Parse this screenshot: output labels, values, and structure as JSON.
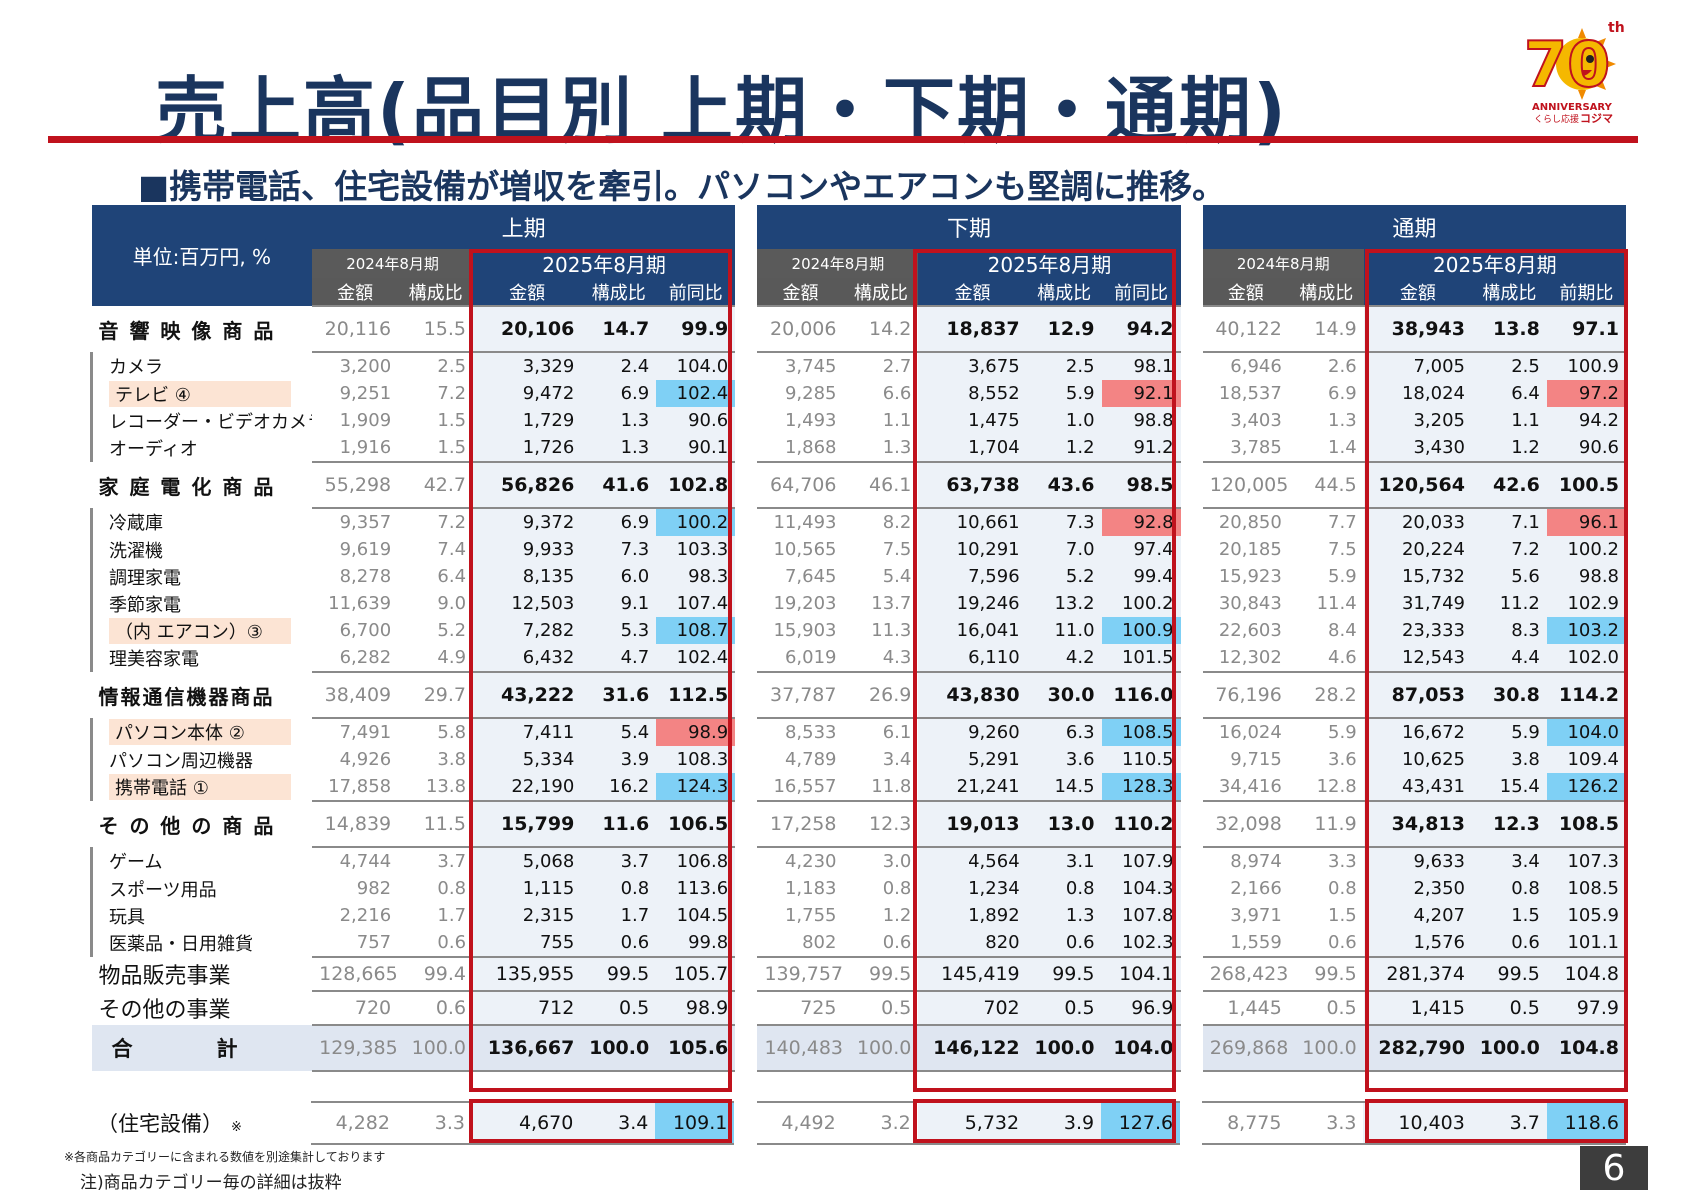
{
  "title": "売上高(品目別 上期・下期・通期)",
  "subtitle": "■携帯電話、住宅設備が増収を牽引。パソコンやエアコンも堅調に推移。",
  "logo": {
    "main": "70",
    "th": "th",
    "anniversary": "ANNIVERSARY",
    "brand_small": "くらし応援",
    "brand": "コジマ"
  },
  "unit_label": "単位:百万円, %",
  "periods": [
    "上期",
    "下期",
    "通期"
  ],
  "prev_year": "2024年8月期",
  "curr_year": "2025年8月期",
  "col_headers": {
    "amount": "金額",
    "ratio": "構成比",
    "yoy_h": "前同比",
    "yoy_full": "前期比"
  },
  "rows": [
    {
      "label": "音 響 映 像 商 品",
      "type": "cat",
      "v": [
        "20,116",
        "15.5",
        "20,106",
        "14.7",
        "99.9",
        "20,006",
        "14.2",
        "18,837",
        "12.9",
        "94.2",
        "40,122",
        "14.9",
        "38,943",
        "13.8",
        "97.1"
      ]
    },
    {
      "label": "カメラ",
      "type": "sub",
      "v": [
        "3,200",
        "2.5",
        "3,329",
        "2.4",
        "104.0",
        "3,745",
        "2.7",
        "3,675",
        "2.5",
        "98.1",
        "6,946",
        "2.6",
        "7,005",
        "2.5",
        "100.9"
      ]
    },
    {
      "label": "テレビ ④",
      "type": "sub",
      "mark": "or",
      "hl": {
        "4": "blue",
        "9": "red",
        "14": "red"
      },
      "v": [
        "9,251",
        "7.2",
        "9,472",
        "6.9",
        "102.4",
        "9,285",
        "6.6",
        "8,552",
        "5.9",
        "92.1",
        "18,537",
        "6.9",
        "18,024",
        "6.4",
        "97.2"
      ]
    },
    {
      "label": "レコーダー・ビデオカメラ",
      "type": "sub",
      "v": [
        "1,909",
        "1.5",
        "1,729",
        "1.3",
        "90.6",
        "1,493",
        "1.1",
        "1,475",
        "1.0",
        "98.8",
        "3,403",
        "1.3",
        "3,205",
        "1.1",
        "94.2"
      ]
    },
    {
      "label": "オーディオ",
      "type": "sub",
      "v": [
        "1,916",
        "1.5",
        "1,726",
        "1.3",
        "90.1",
        "1,868",
        "1.3",
        "1,704",
        "1.2",
        "91.2",
        "3,785",
        "1.4",
        "3,430",
        "1.2",
        "90.6"
      ]
    },
    {
      "label": "家 庭 電 化 商 品",
      "type": "cat",
      "v": [
        "55,298",
        "42.7",
        "56,826",
        "41.6",
        "102.8",
        "64,706",
        "46.1",
        "63,738",
        "43.6",
        "98.5",
        "120,005",
        "44.5",
        "120,564",
        "42.6",
        "100.5"
      ]
    },
    {
      "label": "冷蔵庫",
      "type": "sub",
      "hl": {
        "4": "blue",
        "9": "red",
        "14": "red"
      },
      "v": [
        "9,357",
        "7.2",
        "9,372",
        "6.9",
        "100.2",
        "11,493",
        "8.2",
        "10,661",
        "7.3",
        "92.8",
        "20,850",
        "7.7",
        "20,033",
        "7.1",
        "96.1"
      ]
    },
    {
      "label": "洗濯機",
      "type": "sub",
      "v": [
        "9,619",
        "7.4",
        "9,933",
        "7.3",
        "103.3",
        "10,565",
        "7.5",
        "10,291",
        "7.0",
        "97.4",
        "20,185",
        "7.5",
        "20,224",
        "7.2",
        "100.2"
      ]
    },
    {
      "label": "調理家電",
      "type": "sub",
      "v": [
        "8,278",
        "6.4",
        "8,135",
        "6.0",
        "98.3",
        "7,645",
        "5.4",
        "7,596",
        "5.2",
        "99.4",
        "15,923",
        "5.9",
        "15,732",
        "5.6",
        "98.8"
      ]
    },
    {
      "label": "季節家電",
      "type": "sub",
      "v": [
        "11,639",
        "9.0",
        "12,503",
        "9.1",
        "107.4",
        "19,203",
        "13.7",
        "19,246",
        "13.2",
        "100.2",
        "30,843",
        "11.4",
        "31,749",
        "11.2",
        "102.9"
      ]
    },
    {
      "label": "（内 エアコン）③",
      "type": "sub",
      "mark": "or",
      "hl": {
        "4": "blue",
        "9": "blue",
        "14": "blue"
      },
      "v": [
        "6,700",
        "5.2",
        "7,282",
        "5.3",
        "108.7",
        "15,903",
        "11.3",
        "16,041",
        "11.0",
        "100.9",
        "22,603",
        "8.4",
        "23,333",
        "8.3",
        "103.2"
      ]
    },
    {
      "label": "理美容家電",
      "type": "sub",
      "v": [
        "6,282",
        "4.9",
        "6,432",
        "4.7",
        "102.4",
        "6,019",
        "4.3",
        "6,110",
        "4.2",
        "101.5",
        "12,302",
        "4.6",
        "12,543",
        "4.4",
        "102.0"
      ]
    },
    {
      "label": "情報通信機器商品",
      "type": "cat",
      "v": [
        "38,409",
        "29.7",
        "43,222",
        "31.6",
        "112.5",
        "37,787",
        "26.9",
        "43,830",
        "30.0",
        "116.0",
        "76,196",
        "28.2",
        "87,053",
        "30.8",
        "114.2"
      ]
    },
    {
      "label": "パソコン本体 ②",
      "type": "sub",
      "mark": "or",
      "hl": {
        "4": "red",
        "9": "blue",
        "14": "blue"
      },
      "v": [
        "7,491",
        "5.8",
        "7,411",
        "5.4",
        "98.9",
        "8,533",
        "6.1",
        "9,260",
        "6.3",
        "108.5",
        "16,024",
        "5.9",
        "16,672",
        "5.9",
        "104.0"
      ]
    },
    {
      "label": "パソコン周辺機器",
      "type": "sub",
      "v": [
        "4,926",
        "3.8",
        "5,334",
        "3.9",
        "108.3",
        "4,789",
        "3.4",
        "5,291",
        "3.6",
        "110.5",
        "9,715",
        "3.6",
        "10,625",
        "3.8",
        "109.4"
      ]
    },
    {
      "label": "携帯電話 ①",
      "type": "sub",
      "mark": "or",
      "hl": {
        "4": "blue",
        "9": "blue",
        "14": "blue"
      },
      "v": [
        "17,858",
        "13.8",
        "22,190",
        "16.2",
        "124.3",
        "16,557",
        "11.8",
        "21,241",
        "14.5",
        "128.3",
        "34,416",
        "12.8",
        "43,431",
        "15.4",
        "126.2"
      ]
    },
    {
      "label": "そ の 他 の 商 品",
      "type": "cat",
      "v": [
        "14,839",
        "11.5",
        "15,799",
        "11.6",
        "106.5",
        "17,258",
        "12.3",
        "19,013",
        "13.0",
        "110.2",
        "32,098",
        "11.9",
        "34,813",
        "12.3",
        "108.5"
      ]
    },
    {
      "label": "ゲーム",
      "type": "sub",
      "v": [
        "4,744",
        "3.7",
        "5,068",
        "3.7",
        "106.8",
        "4,230",
        "3.0",
        "4,564",
        "3.1",
        "107.9",
        "8,974",
        "3.3",
        "9,633",
        "3.4",
        "107.3"
      ]
    },
    {
      "label": "スポーツ用品",
      "type": "sub",
      "v": [
        "982",
        "0.8",
        "1,115",
        "0.8",
        "113.6",
        "1,183",
        "0.8",
        "1,234",
        "0.8",
        "104.3",
        "2,166",
        "0.8",
        "2,350",
        "0.8",
        "108.5"
      ]
    },
    {
      "label": "玩具",
      "type": "sub",
      "v": [
        "2,216",
        "1.7",
        "2,315",
        "1.7",
        "104.5",
        "1,755",
        "1.2",
        "1,892",
        "1.3",
        "107.8",
        "3,971",
        "1.5",
        "4,207",
        "1.5",
        "105.9"
      ]
    },
    {
      "label": "医薬品・日用雑貨",
      "type": "sub",
      "v": [
        "757",
        "0.6",
        "755",
        "0.6",
        "99.8",
        "802",
        "0.6",
        "820",
        "0.6",
        "102.3",
        "1,559",
        "0.6",
        "1,576",
        "0.6",
        "101.1"
      ]
    },
    {
      "label": "物品販売事業",
      "type": "seg",
      "v": [
        "128,665",
        "99.4",
        "135,955",
        "99.5",
        "105.7",
        "139,757",
        "99.5",
        "145,419",
        "99.5",
        "104.1",
        "268,423",
        "99.5",
        "281,374",
        "99.5",
        "104.8"
      ]
    },
    {
      "label": "その他の事業",
      "type": "seg",
      "v": [
        "720",
        "0.6",
        "712",
        "0.5",
        "98.9",
        "725",
        "0.5",
        "702",
        "0.5",
        "96.9",
        "1,445",
        "0.5",
        "1,415",
        "0.5",
        "97.9"
      ]
    },
    {
      "label": "合　　　　計",
      "type": "tot",
      "v": [
        "129,385",
        "100.0",
        "136,667",
        "100.0",
        "105.6",
        "140,483",
        "100.0",
        "146,122",
        "100.0",
        "104.0",
        "269,868",
        "100.0",
        "282,790",
        "100.0",
        "104.8"
      ]
    }
  ],
  "housing": {
    "label": "（住宅設備）",
    "mark": "※",
    "hl": {
      "4": "blue",
      "9": "blue",
      "14": "blue"
    },
    "v": [
      "4,282",
      "3.3",
      "4,670",
      "3.4",
      "109.1",
      "4,492",
      "3.2",
      "5,732",
      "3.9",
      "127.6",
      "8,775",
      "3.3",
      "10,403",
      "3.7",
      "118.6"
    ]
  },
  "note1": "※各商品カテゴリーに含まれる数値を別途集計しております",
  "note2": "注)商品カテゴリー毎の詳細は抜粋",
  "page_number": "6",
  "colors": {
    "navy": "#1f4478",
    "red": "#c0121d",
    "hl_blue": "#7fd0f5",
    "hl_red": "#f38484",
    "hl_orange": "#fce4d4"
  }
}
